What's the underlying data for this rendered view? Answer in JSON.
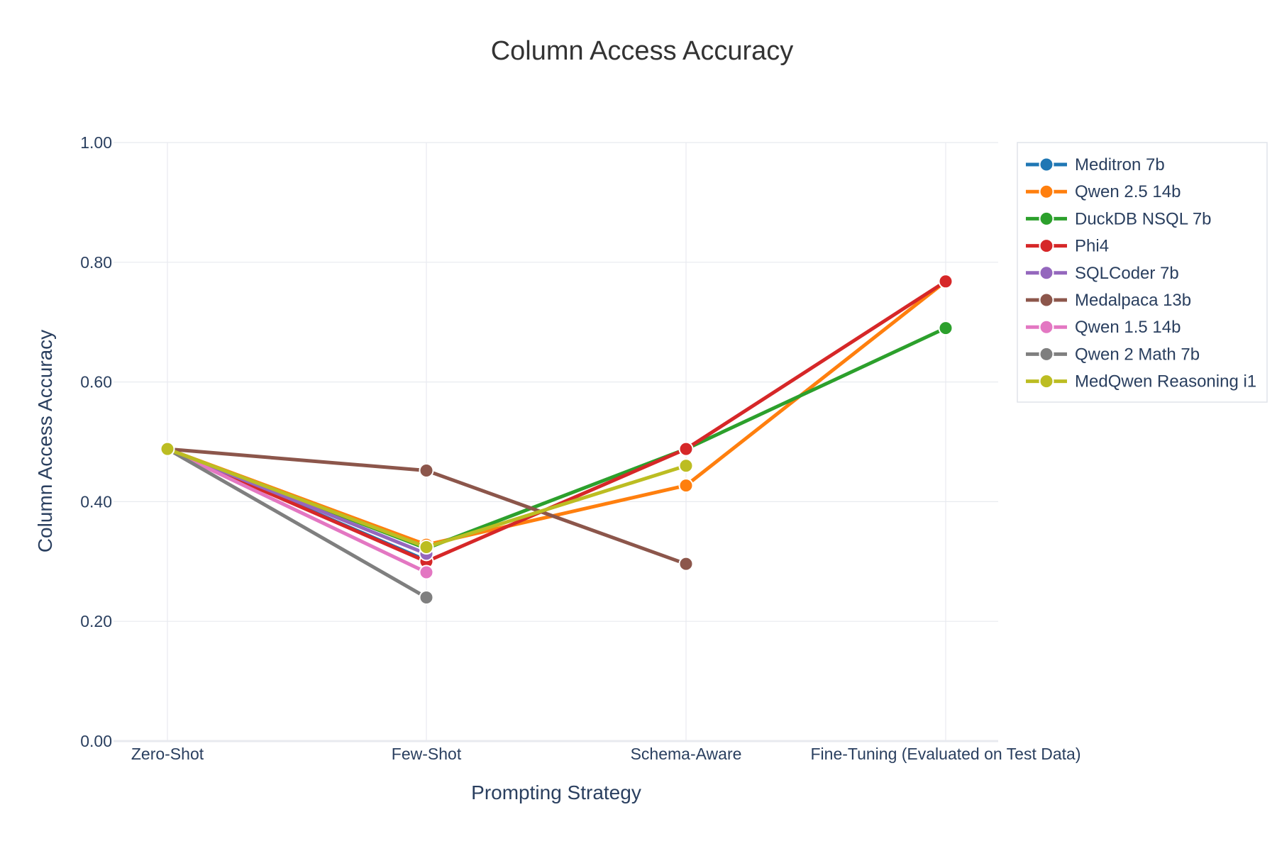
{
  "chart_data": {
    "type": "line",
    "title": "Column Access Accuracy",
    "xlabel": "Prompting Strategy",
    "ylabel": "Column Access Accuracy",
    "categories": [
      "Zero-Shot",
      "Few-Shot",
      "Schema-Aware",
      "Fine-Tuning (Evaluated on Test Data)"
    ],
    "ylim": [
      0,
      1
    ],
    "yticks": [
      "0.00",
      "0.20",
      "0.40",
      "0.60",
      "0.80",
      "1.00"
    ],
    "ytick_values": [
      0,
      0.2,
      0.4,
      0.6,
      0.8,
      1.0
    ],
    "grid": true,
    "legend_position": "top-right",
    "series": [
      {
        "name": "Meditron 7b",
        "color": "#1f77b4",
        "values": [
          0.488,
          0.302,
          null,
          null
        ]
      },
      {
        "name": "Qwen 2.5 14b",
        "color": "#ff7f0e",
        "values": [
          0.488,
          0.328,
          0.427,
          0.768
        ]
      },
      {
        "name": "DuckDB NSQL 7b",
        "color": "#2ca02c",
        "values": [
          0.488,
          0.322,
          0.488,
          0.69
        ]
      },
      {
        "name": "Phi4",
        "color": "#d62728",
        "values": [
          0.488,
          0.3,
          0.488,
          0.768
        ]
      },
      {
        "name": "SQLCoder 7b",
        "color": "#9467bd",
        "values": [
          0.488,
          0.313,
          null,
          null
        ]
      },
      {
        "name": "Medalpaca 13b",
        "color": "#8c564b",
        "values": [
          0.488,
          0.452,
          0.296,
          null
        ]
      },
      {
        "name": "Qwen 1.5 14b",
        "color": "#e377c2",
        "values": [
          0.488,
          0.282,
          null,
          null
        ]
      },
      {
        "name": "Qwen 2 Math 7b",
        "color": "#7f7f7f",
        "values": [
          0.488,
          0.24,
          null,
          null
        ]
      },
      {
        "name": "MedQwen Reasoning i1",
        "color": "#bcbd22",
        "values": [
          0.488,
          0.324,
          0.46,
          null
        ]
      }
    ]
  }
}
